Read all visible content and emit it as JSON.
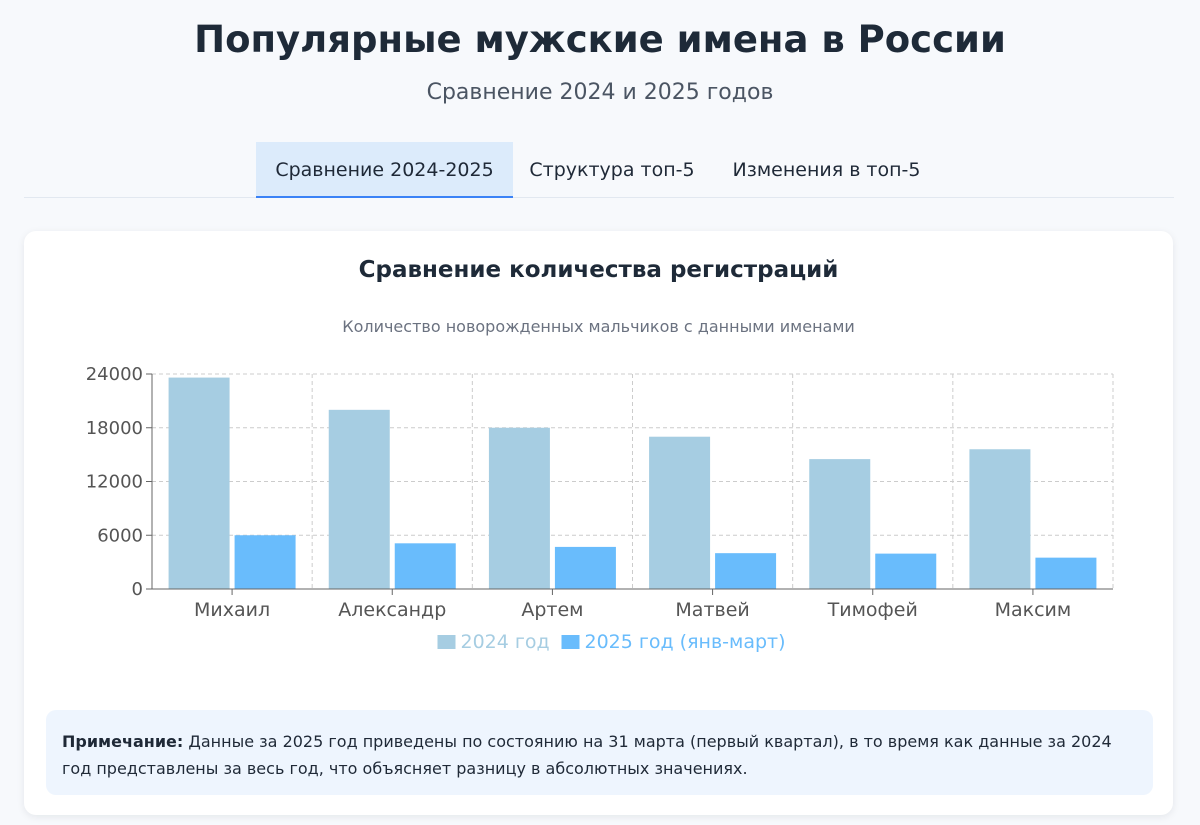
{
  "header": {
    "title": "Популярные мужские имена в России",
    "subtitle": "Сравнение 2024 и 2025 годов"
  },
  "tabs": [
    {
      "label": "Сравнение 2024-2025",
      "active": true
    },
    {
      "label": "Структура топ-5",
      "active": false
    },
    {
      "label": "Изменения в топ-5",
      "active": false
    }
  ],
  "chart_data": {
    "type": "bar",
    "title": "Сравнение количества регистраций",
    "subtitle": "Количество новорожденных мальчиков с данными именами",
    "categories": [
      "Михаил",
      "Александр",
      "Артем",
      "Матвей",
      "Тимофей",
      "Максим"
    ],
    "series": [
      {
        "name": "2024 год",
        "color": "#a6cde2",
        "values": [
          23600,
          20000,
          18000,
          17000,
          14500,
          15600
        ]
      },
      {
        "name": "2025 год (янв-март)",
        "color": "#69bcfc",
        "values": [
          6000,
          5100,
          4700,
          4000,
          3950,
          3500
        ]
      }
    ],
    "ylim": [
      0,
      24000
    ],
    "yticks": [
      0,
      6000,
      12000,
      18000,
      24000
    ],
    "grid": true,
    "legend": "bottom"
  },
  "note": {
    "label": "Примечание:",
    "text": "Данные за 2025 год приведены по состоянию на 31 марта (первый квартал), в то время как данные за 2024 год представлены за весь год, что объясняет разницу в абсолютных значениях."
  }
}
